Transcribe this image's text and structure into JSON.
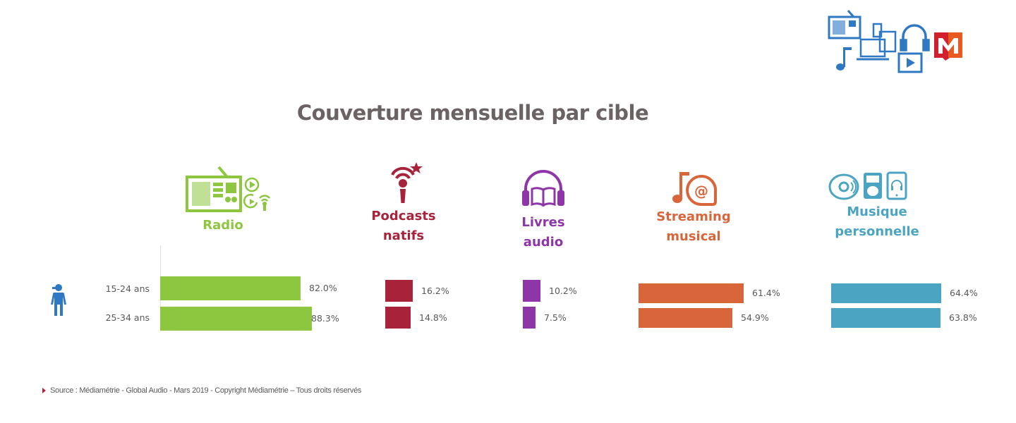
{
  "title": "Couverture mensuelle par cible",
  "source": "Source : Médiamétrie - Global Audio - Mars 2019 - Copyright Médiamétrie – Tous droits réservés",
  "logo": {
    "name": "mediametrie-logo",
    "letter": "M",
    "colors": [
      "#d3202f",
      "#e85a1e"
    ]
  },
  "header_icons": [
    "radio-icon",
    "music-note-icon",
    "devices-icon",
    "headphones-icon",
    "video-play-icon"
  ],
  "target_icon": "person-icon",
  "colors": {
    "radio": "#8dc63f",
    "podcasts": "#a8233a",
    "livres": "#8e35a8",
    "streaming": "#d8663a",
    "musique": "#4ba5c2",
    "person": "#2f78c4",
    "header_icons": "#2f78c4"
  },
  "chart_data": {
    "type": "bar",
    "orientation": "horizontal",
    "title": "Couverture mensuelle par cible",
    "categories": [
      "15-24 ans",
      "25-34 ans"
    ],
    "value_suffix": "%",
    "xlim": [
      0,
      100
    ],
    "grid": false,
    "groups": [
      {
        "key": "radio",
        "label_lines": [
          "Radio"
        ],
        "icon": "radio-icon",
        "values": [
          82.0,
          88.3
        ],
        "labels": [
          "82.0%",
          "88.3%"
        ]
      },
      {
        "key": "podcasts",
        "label_lines": [
          "Podcasts",
          "natifs"
        ],
        "icon": "podcast-microphone-icon",
        "values": [
          16.2,
          14.8
        ],
        "labels": [
          "16.2%",
          "14.8%"
        ]
      },
      {
        "key": "livres",
        "label_lines": [
          "Livres",
          "audio"
        ],
        "icon": "audiobook-headphones-icon",
        "values": [
          10.2,
          7.5
        ],
        "labels": [
          "10.2%",
          "7.5%"
        ]
      },
      {
        "key": "streaming",
        "label_lines": [
          "Streaming",
          "musical"
        ],
        "icon": "music-streaming-icon",
        "values": [
          61.4,
          54.9
        ],
        "labels": [
          "61.4%",
          "54.9%"
        ]
      },
      {
        "key": "musique",
        "label_lines": [
          "Musique",
          "personnelle"
        ],
        "icon": "personal-music-icon",
        "values": [
          64.4,
          63.8
        ],
        "labels": [
          "64.4%",
          "63.8%"
        ]
      }
    ]
  }
}
